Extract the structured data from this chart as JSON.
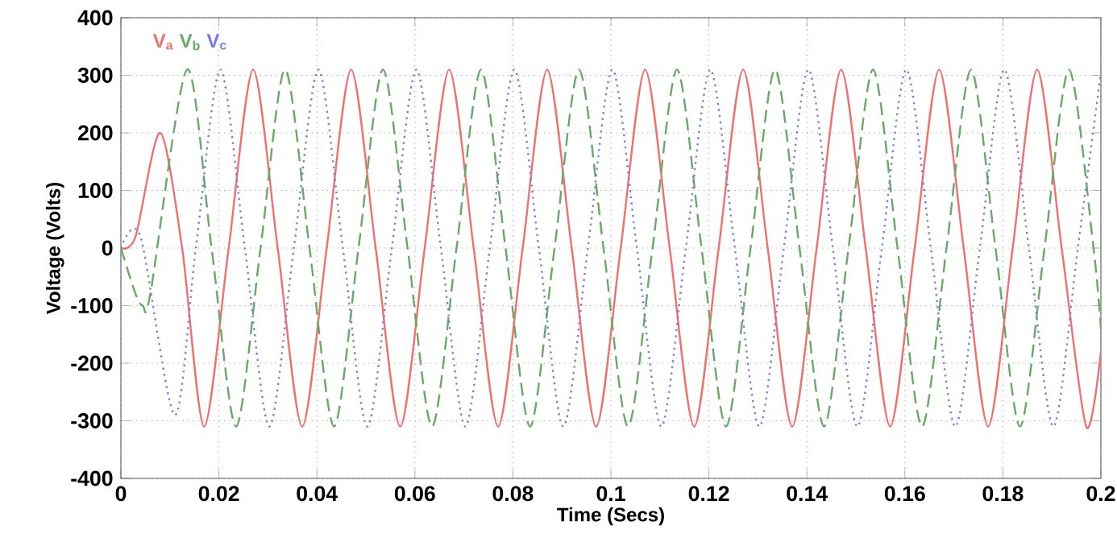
{
  "chart_data": {
    "type": "line",
    "xlabel": "Time (Secs)",
    "ylabel": "Voltage (Volts)",
    "xlim": [
      0,
      0.2
    ],
    "ylim": [
      -400,
      400
    ],
    "xticks": [
      0,
      0.02,
      0.04,
      0.06,
      0.08,
      0.1,
      0.12,
      0.14,
      0.16,
      0.18,
      0.2
    ],
    "yticks": [
      -400,
      -300,
      -200,
      -100,
      0,
      100,
      200,
      300,
      400
    ],
    "grid": true,
    "legend": "top left",
    "marker": "none",
    "series": [
      {
        "name": "V$_{a}$",
        "color": "#f07070",
        "line_style": "solid",
        "x": [
          0,
          0.003,
          0.008,
          0.0125,
          0.017,
          0.022,
          0.027,
          0.032,
          0.037,
          0.042,
          0.047,
          0.052,
          0.057,
          0.062,
          0.067,
          0.072,
          0.077,
          0.082,
          0.087,
          0.092,
          0.097,
          0.102,
          0.107,
          0.112,
          0.117,
          0.122,
          0.127,
          0.132,
          0.137,
          0.142,
          0.147,
          0.152,
          0.157,
          0.162,
          0.167,
          0.172,
          0.177,
          0.182,
          0.187,
          0.192,
          0.197,
          0.2
        ],
        "values": [
          0,
          20,
          200,
          0,
          -310,
          0,
          310,
          0,
          -310,
          0,
          310,
          0,
          -310,
          0,
          310,
          0,
          -310,
          0,
          310,
          0,
          -310,
          0,
          310,
          0,
          -310,
          0,
          310,
          0,
          -310,
          0,
          310,
          0,
          -310,
          0,
          310,
          0,
          -310,
          0,
          310,
          0,
          -310,
          -180
        ]
      },
      {
        "name": "V$_{b}$",
        "color": "#66aa66",
        "line_style": "dashed",
        "x": [
          0,
          0.003,
          0.0045,
          0.006,
          0.0135,
          0.0185,
          0.0235,
          0.0285,
          0.0335,
          0.0385,
          0.0435,
          0.0485,
          0.0535,
          0.0585,
          0.0635,
          0.0685,
          0.0735,
          0.0785,
          0.0835,
          0.0885,
          0.0935,
          0.0985,
          0.1035,
          0.1085,
          0.1135,
          0.1185,
          0.1235,
          0.1285,
          0.1335,
          0.1385,
          0.1435,
          0.1485,
          0.1535,
          0.1585,
          0.1635,
          0.1685,
          0.1735,
          0.1785,
          0.1835,
          0.1885,
          0.1935,
          0.1985,
          0.2
        ],
        "values": [
          0,
          -80,
          -100,
          -80,
          310,
          0,
          -310,
          0,
          310,
          0,
          -310,
          0,
          310,
          0,
          -310,
          0,
          310,
          0,
          -310,
          0,
          310,
          0,
          -310,
          0,
          310,
          0,
          -310,
          0,
          310,
          0,
          -310,
          0,
          310,
          0,
          -310,
          0,
          310,
          0,
          -310,
          0,
          310,
          0,
          -140
        ]
      },
      {
        "name": "V$_{c}$",
        "color": "#7a7ae8",
        "line_style": "dotted",
        "x": [
          0,
          0.004,
          0.011,
          0.0153,
          0.0203,
          0.0253,
          0.0303,
          0.0353,
          0.0403,
          0.0453,
          0.0503,
          0.0553,
          0.0603,
          0.0653,
          0.0703,
          0.0753,
          0.0803,
          0.0853,
          0.0903,
          0.0953,
          0.1003,
          0.1053,
          0.1103,
          0.1153,
          0.1203,
          0.1253,
          0.1303,
          0.1353,
          0.1403,
          0.1453,
          0.1503,
          0.1553,
          0.1603,
          0.1653,
          0.1703,
          0.1753,
          0.1803,
          0.1853,
          0.1903,
          0.1953,
          0.2
        ],
        "values": [
          0,
          20,
          -290,
          0,
          310,
          0,
          -310,
          0,
          310,
          0,
          -310,
          0,
          310,
          0,
          -310,
          0,
          310,
          0,
          -310,
          0,
          310,
          0,
          -310,
          0,
          310,
          0,
          -310,
          0,
          310,
          0,
          -310,
          0,
          310,
          0,
          -310,
          0,
          310,
          0,
          -310,
          0,
          305
        ]
      }
    ]
  }
}
